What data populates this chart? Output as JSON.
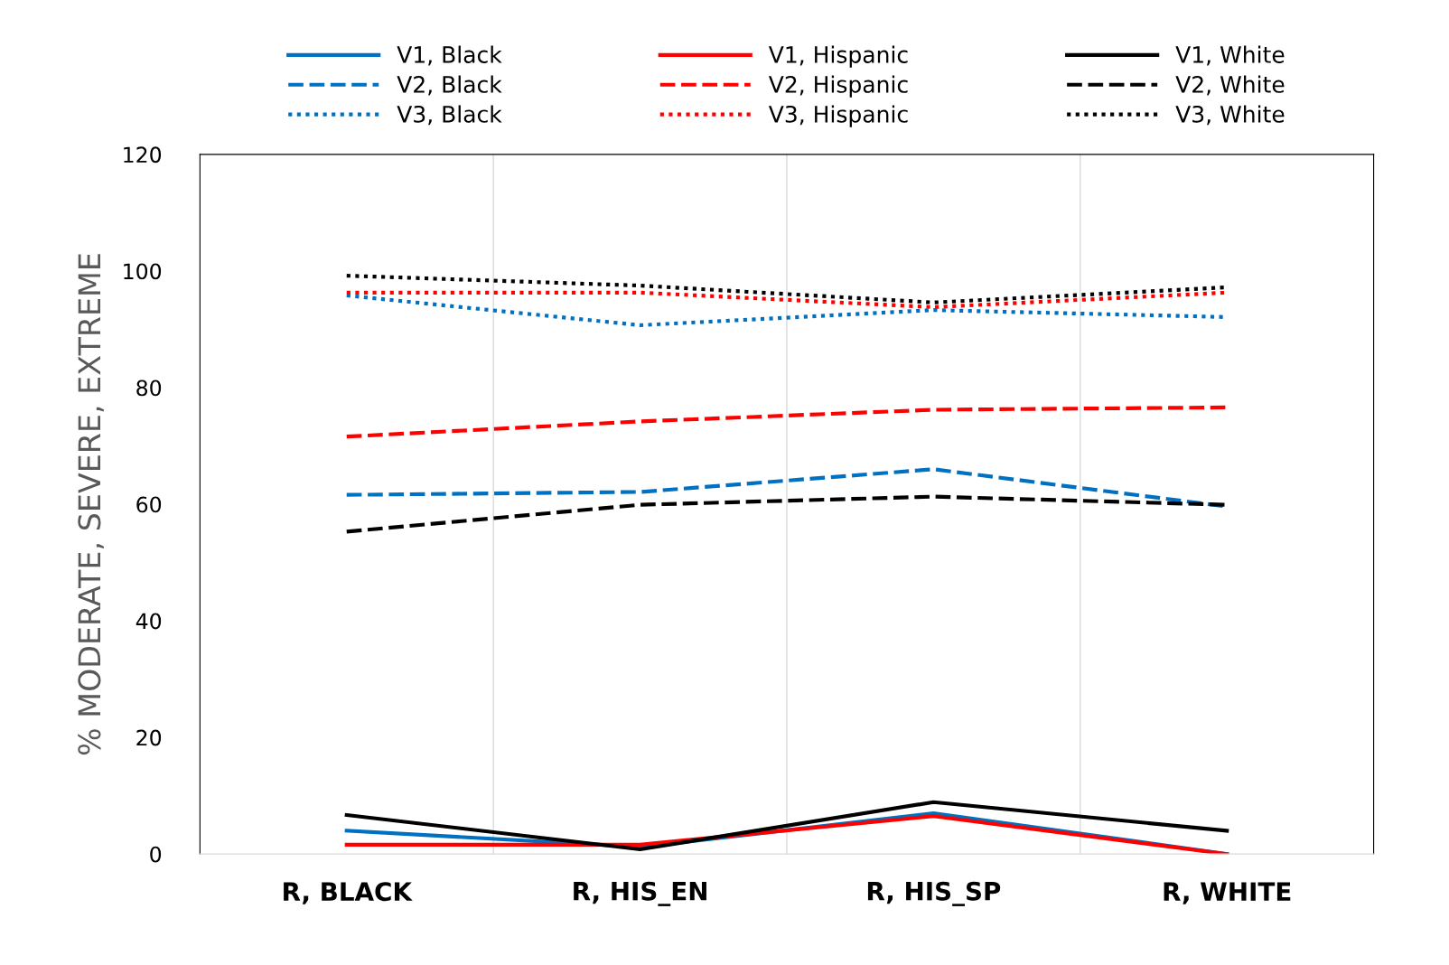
{
  "chart_data": {
    "type": "line",
    "ylabel": "% MODERATE, SEVERE, EXTREME",
    "categories": [
      "R, BLACK",
      "R, HIS_EN",
      "R, HIS_SP",
      "R, WHITE"
    ],
    "ylim": [
      0,
      120
    ],
    "yticks": [
      0,
      20,
      40,
      60,
      80,
      100,
      120
    ],
    "grid": "x",
    "legend": "top",
    "marker": "none",
    "series": [
      {
        "name": "V1, Black",
        "color": "#0070c0",
        "line_style": "solid",
        "values": [
          4.0,
          1.2,
          7.0,
          0
        ]
      },
      {
        "name": "V2, Black",
        "color": "#0070c0",
        "line_style": "dashed",
        "values": [
          61.6,
          62.1,
          66.0,
          59.6
        ]
      },
      {
        "name": "V3, Black",
        "color": "#0070c0",
        "line_style": "dotted",
        "values": [
          95.8,
          90.7,
          93.3,
          92.1
        ]
      },
      {
        "name": "V1, Hispanic",
        "color": "#ff0000",
        "line_style": "solid",
        "values": [
          1.6,
          1.6,
          6.5,
          0
        ]
      },
      {
        "name": "V2, Hispanic",
        "color": "#ff0000",
        "line_style": "dashed",
        "values": [
          71.6,
          74.2,
          76.2,
          76.6
        ]
      },
      {
        "name": "V3, Hispanic",
        "color": "#ff0000",
        "line_style": "dotted",
        "values": [
          96.3,
          96.3,
          93.8,
          96.3
        ]
      },
      {
        "name": "V1, White",
        "color": "#000000",
        "line_style": "solid",
        "values": [
          6.7,
          0.8,
          8.9,
          4.0
        ]
      },
      {
        "name": "V2, White",
        "color": "#000000",
        "line_style": "dashed",
        "values": [
          55.3,
          59.9,
          61.3,
          59.9
        ]
      },
      {
        "name": "V3, White",
        "color": "#000000",
        "line_style": "dotted",
        "values": [
          99.2,
          97.5,
          94.6,
          97.2
        ]
      }
    ]
  }
}
